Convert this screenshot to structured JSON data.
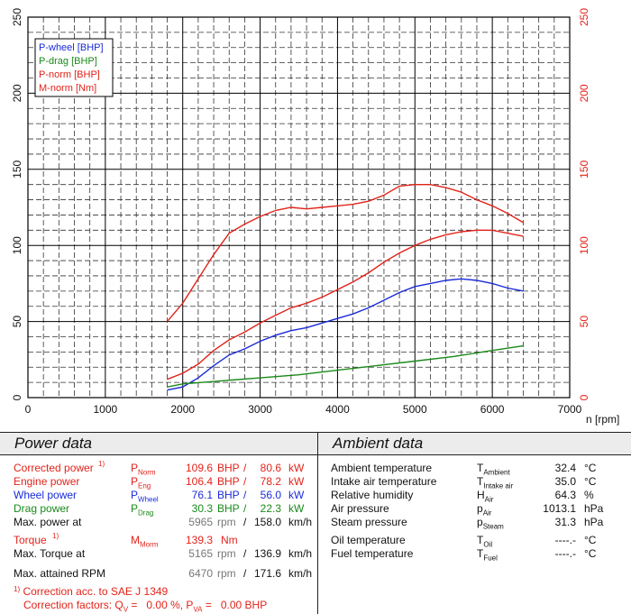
{
  "chart_data": {
    "type": "line",
    "title": "",
    "xlabel": "n [rpm]",
    "xlim": [
      0,
      7000
    ],
    "xticks": [
      0,
      1000,
      2000,
      3000,
      4000,
      5000,
      6000,
      7000
    ],
    "ylim_left": [
      0,
      250
    ],
    "yticks_left": [
      0,
      50,
      100,
      150,
      200,
      250
    ],
    "ylim_right": [
      0,
      250
    ],
    "yticks_right": [
      0,
      50,
      100,
      150,
      200,
      250
    ],
    "grid": true,
    "legend_position": "top-left",
    "series": [
      {
        "name": "P-wheel [BHP]",
        "color": "#1a2bd8",
        "x": [
          1800,
          2000,
          2200,
          2400,
          2600,
          2800,
          3000,
          3200,
          3400,
          3600,
          3800,
          4000,
          4200,
          4400,
          4600,
          4800,
          5000,
          5200,
          5400,
          5600,
          5800,
          6000,
          6200,
          6400
        ],
        "y": [
          5,
          7,
          13,
          21,
          28,
          32,
          37,
          41,
          44,
          46,
          49,
          52,
          55,
          59,
          64,
          69,
          73,
          75,
          77,
          78,
          77,
          75,
          72,
          70
        ]
      },
      {
        "name": "P-drag [BHP]",
        "color": "#1a8a1a",
        "x": [
          1800,
          2000,
          2500,
          3000,
          3500,
          4000,
          4500,
          5000,
          5500,
          6000,
          6400
        ],
        "y": [
          7,
          9,
          11,
          13,
          15,
          18,
          21,
          24,
          27,
          31,
          34
        ]
      },
      {
        "name": "P-norm [BHP]",
        "color": "#e2231a",
        "x": [
          1800,
          2000,
          2200,
          2400,
          2600,
          2800,
          3000,
          3200,
          3400,
          3600,
          3800,
          4000,
          4200,
          4400,
          4600,
          4800,
          5000,
          5200,
          5400,
          5600,
          5800,
          6000,
          6200,
          6400
        ],
        "y": [
          12,
          16,
          22,
          31,
          38,
          43,
          49,
          54,
          59,
          62,
          66,
          71,
          76,
          82,
          89,
          95,
          100,
          104,
          107,
          109,
          110,
          110,
          108,
          106
        ]
      },
      {
        "name": "M-norm [Nm]",
        "color": "#e2231a",
        "x": [
          1800,
          2000,
          2200,
          2400,
          2600,
          2800,
          3000,
          3200,
          3400,
          3600,
          3800,
          4000,
          4200,
          4400,
          4600,
          4800,
          5000,
          5200,
          5400,
          5600,
          5800,
          6000,
          6200,
          6400
        ],
        "y": [
          50,
          62,
          78,
          94,
          108,
          114,
          119,
          123,
          125,
          124,
          125,
          126,
          127,
          129,
          133,
          139,
          140,
          140,
          138,
          135,
          130,
          126,
          121,
          115
        ]
      }
    ]
  },
  "power_data": {
    "title": "Power data",
    "rows": [
      {
        "label": "Corrected power",
        "footnote": "1)",
        "sym": "P",
        "sub": "Norm",
        "v1": "109.6",
        "u1": "BHP",
        "sep": "/",
        "v2": "80.6",
        "u2": "kW",
        "color": "red"
      },
      {
        "label": "Engine power",
        "footnote": "",
        "sym": "P",
        "sub": "Eng",
        "v1": "106.4",
        "u1": "BHP",
        "sep": "/",
        "v2": "78.2",
        "u2": "kW",
        "color": "red"
      },
      {
        "label": "Wheel power",
        "footnote": "",
        "sym": "P",
        "sub": "Wheel",
        "v1": "76.1",
        "u1": "BHP",
        "sep": "/",
        "v2": "56.0",
        "u2": "kW",
        "color": "blue"
      },
      {
        "label": "Drag power",
        "footnote": "",
        "sym": "P",
        "sub": "Drag",
        "v1": "30.3",
        "u1": "BHP",
        "sep": "/",
        "v2": "22.3",
        "u2": "kW",
        "color": "green"
      }
    ],
    "max_power": {
      "label": "Max. power at",
      "v1": "5965",
      "u1": "rpm",
      "sep": "/",
      "v2": "158.0",
      "u2": "km/h"
    },
    "torque": {
      "label": "Torque",
      "footnote": "1)",
      "sym": "M",
      "sub": "Morm",
      "v1": "139.3",
      "u1": "Nm"
    },
    "max_torque": {
      "label": "Max. Torque at",
      "v1": "5165",
      "u1": "rpm",
      "sep": "/",
      "v2": "136.9",
      "u2": "km/h"
    },
    "max_rpm": {
      "label": "Max. attained RPM",
      "v1": "6470",
      "u1": "rpm",
      "sep": "/",
      "v2": "171.6",
      "u2": "km/h"
    },
    "footnote": {
      "mark": "1)",
      "line1": "Correction acc. to SAE J 1349",
      "line2_a": "Correction factors: Q",
      "line2_sub1": "V",
      "line2_b": " =   0.00 %, P",
      "line2_sub2": "VA",
      "line2_c": " =   0.00 BHP"
    }
  },
  "ambient_data": {
    "title": "Ambient data",
    "rows": [
      {
        "label": "Ambient temperature",
        "sym": "T",
        "sub": "Ambient",
        "value": "32.4",
        "unit": "°C"
      },
      {
        "label": "Intake air temperature",
        "sym": "T",
        "sub": "Intake air",
        "value": "35.0",
        "unit": "°C"
      },
      {
        "label": "Relative humidity",
        "sym": "H",
        "sub": "Air",
        "value": "64.3",
        "unit": "%"
      },
      {
        "label": "Air pressure",
        "sym": "p",
        "sub": "Air",
        "value": "1013.1",
        "unit": "hPa"
      },
      {
        "label": "Steam pressure",
        "sym": "p",
        "sub": "Steam",
        "value": "31.3",
        "unit": "hPa"
      },
      {
        "label": "Oil temperature",
        "sym": "T",
        "sub": "Oil",
        "value": "----.-",
        "unit": "°C"
      },
      {
        "label": "Fuel temperature",
        "sym": "T",
        "sub": "Fuel",
        "value": "----.-",
        "unit": "°C"
      }
    ]
  }
}
